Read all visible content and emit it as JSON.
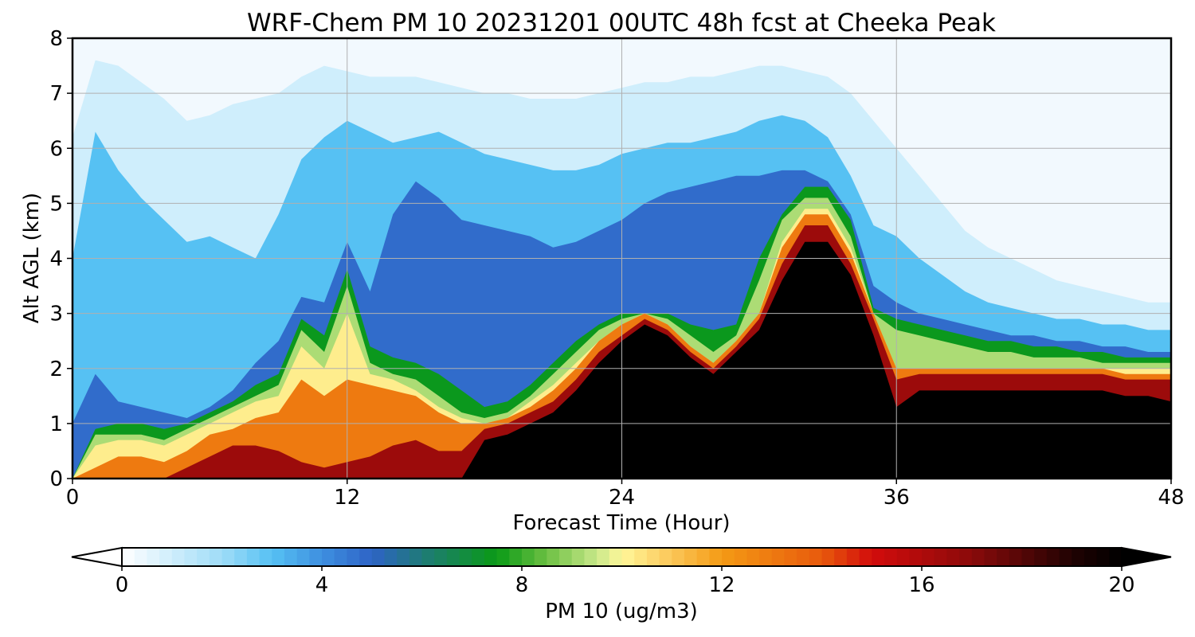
{
  "chart_data": {
    "type": "heatmap",
    "title": "WRF-Chem PM 10  20231201 00UTC 48h fcst at Cheeka Peak",
    "xlabel": "Forecast Time (Hour)",
    "ylabel": "Alt AGL (km)",
    "xlim": [
      0,
      48
    ],
    "ylim": [
      0,
      8
    ],
    "xticks": [
      0,
      12,
      24,
      36,
      48
    ],
    "yticks": [
      0,
      1,
      2,
      3,
      4,
      5,
      6,
      7,
      8
    ],
    "grid": true,
    "x_hours": [
      0,
      1,
      2,
      3,
      4,
      5,
      6,
      7,
      8,
      9,
      10,
      11,
      12,
      13,
      14,
      15,
      16,
      17,
      18,
      19,
      20,
      21,
      22,
      23,
      24,
      25,
      26,
      27,
      28,
      29,
      30,
      31,
      32,
      33,
      34,
      35,
      36,
      37,
      38,
      39,
      40,
      41,
      42,
      43,
      44,
      45,
      46,
      47,
      48
    ],
    "terrain_km": [
      0,
      0,
      0,
      0,
      0,
      0,
      0,
      0,
      0,
      0,
      0,
      0,
      0,
      0,
      0,
      0,
      0,
      0,
      0.7,
      0.8,
      1.0,
      1.2,
      1.6,
      2.1,
      2.5,
      2.8,
      2.6,
      2.2,
      1.9,
      2.3,
      2.7,
      3.6,
      4.3,
      4.3,
      3.7,
      2.6,
      1.3,
      1.6,
      1.6,
      1.6,
      1.6,
      1.6,
      1.6,
      1.6,
      1.6,
      1.6,
      1.5,
      1.5,
      1.4
    ],
    "layers": [
      {
        "name": "pm10_gt_16_ug_m3",
        "top_km": [
          0,
          0,
          0,
          0,
          0,
          0.2,
          0.4,
          0.6,
          0.6,
          0.5,
          0.3,
          0.2,
          0.3,
          0.4,
          0.6,
          0.7,
          0.5,
          0.5,
          0.9,
          1.0,
          1.2,
          1.4,
          1.8,
          2.3,
          2.6,
          2.9,
          2.7,
          2.3,
          2.0,
          2.4,
          2.9,
          3.9,
          4.6,
          4.6,
          3.9,
          2.9,
          1.8,
          1.9,
          1.9,
          1.9,
          1.9,
          1.9,
          1.9,
          1.9,
          1.9,
          1.9,
          1.8,
          1.8,
          1.8
        ]
      },
      {
        "name": "pm10_gt_12_ug_m3",
        "top_km": [
          0,
          0.2,
          0.4,
          0.4,
          0.3,
          0.5,
          0.8,
          0.9,
          1.1,
          1.2,
          1.8,
          1.5,
          1.8,
          1.7,
          1.6,
          1.5,
          1.2,
          1.0,
          1.0,
          1.1,
          1.3,
          1.6,
          2.0,
          2.5,
          2.8,
          3.0,
          2.8,
          2.4,
          2.1,
          2.5,
          3.0,
          4.2,
          4.8,
          4.8,
          4.1,
          3.0,
          2.0,
          2.0,
          2.0,
          2.0,
          2.0,
          2.0,
          2.0,
          2.0,
          2.0,
          2.0,
          1.9,
          1.9,
          1.9
        ]
      },
      {
        "name": "pm10_gt_10_ug_m3",
        "top_km": [
          0,
          0.6,
          0.7,
          0.7,
          0.6,
          0.8,
          1.0,
          1.2,
          1.4,
          1.5,
          2.4,
          2.0,
          3.0,
          1.9,
          1.8,
          1.6,
          1.3,
          1.1,
          1.0,
          1.1,
          1.4,
          1.7,
          2.1,
          2.5,
          2.8,
          3.0,
          2.8,
          2.4,
          2.1,
          2.5,
          3.0,
          4.3,
          4.9,
          4.9,
          4.2,
          3.0,
          2.0,
          2.0,
          2.0,
          2.0,
          2.0,
          2.0,
          2.0,
          2.0,
          2.0,
          2.0,
          2.0,
          2.0,
          2.0
        ]
      },
      {
        "name": "pm10_gt_8_ug_m3",
        "top_km": [
          0,
          0.8,
          0.8,
          0.8,
          0.7,
          0.9,
          1.1,
          1.3,
          1.5,
          1.7,
          2.7,
          2.3,
          3.5,
          2.1,
          1.9,
          1.8,
          1.5,
          1.2,
          1.1,
          1.2,
          1.5,
          1.9,
          2.3,
          2.7,
          2.9,
          3.0,
          2.9,
          2.6,
          2.3,
          2.6,
          3.6,
          4.7,
          5.1,
          5.1,
          4.4,
          3.0,
          2.7,
          2.6,
          2.5,
          2.4,
          2.3,
          2.3,
          2.2,
          2.2,
          2.2,
          2.1,
          2.1,
          2.1,
          2.1
        ]
      },
      {
        "name": "pm10_gt_6_ug_m3",
        "top_km": [
          0,
          0.9,
          1.0,
          1.0,
          0.9,
          1.0,
          1.2,
          1.4,
          1.7,
          1.9,
          2.9,
          2.6,
          3.8,
          2.4,
          2.2,
          2.1,
          1.9,
          1.6,
          1.3,
          1.4,
          1.7,
          2.1,
          2.5,
          2.8,
          3.0,
          3.0,
          3.0,
          2.8,
          2.7,
          2.8,
          4.0,
          4.8,
          5.3,
          5.3,
          4.7,
          3.1,
          2.9,
          2.8,
          2.7,
          2.6,
          2.5,
          2.5,
          2.4,
          2.4,
          2.3,
          2.3,
          2.2,
          2.2,
          2.2
        ]
      },
      {
        "name": "pm10_gt_4_ug_m3",
        "top_km": [
          1.0,
          1.9,
          1.4,
          1.3,
          1.2,
          1.1,
          1.3,
          1.6,
          2.1,
          2.5,
          3.3,
          3.2,
          4.3,
          3.4,
          4.8,
          5.4,
          5.1,
          4.7,
          4.6,
          4.5,
          4.4,
          4.2,
          4.3,
          4.5,
          4.7,
          5.0,
          5.2,
          5.3,
          5.4,
          5.5,
          5.5,
          5.6,
          5.6,
          5.4,
          4.8,
          3.5,
          3.2,
          3.0,
          2.9,
          2.8,
          2.7,
          2.6,
          2.6,
          2.5,
          2.5,
          2.4,
          2.4,
          2.3,
          2.3
        ]
      },
      {
        "name": "pm10_gt_2_ug_m3",
        "top_km": [
          4.0,
          6.3,
          5.6,
          5.1,
          4.7,
          4.3,
          4.4,
          4.2,
          4.0,
          4.8,
          5.8,
          6.2,
          6.5,
          6.3,
          6.1,
          6.2,
          6.3,
          6.1,
          5.9,
          5.8,
          5.7,
          5.6,
          5.6,
          5.7,
          5.9,
          6.0,
          6.1,
          6.1,
          6.2,
          6.3,
          6.5,
          6.6,
          6.5,
          6.2,
          5.5,
          4.6,
          4.4,
          4.0,
          3.7,
          3.4,
          3.2,
          3.1,
          3.0,
          2.9,
          2.9,
          2.8,
          2.8,
          2.7,
          2.7
        ]
      },
      {
        "name": "pm10_gt_0.5_ug_m3",
        "top_km": [
          6.2,
          7.6,
          7.5,
          7.2,
          6.9,
          6.5,
          6.6,
          6.8,
          6.9,
          7.0,
          7.3,
          7.5,
          7.4,
          7.3,
          7.3,
          7.3,
          7.2,
          7.1,
          7.0,
          7.0,
          6.9,
          6.9,
          6.9,
          7.0,
          7.1,
          7.2,
          7.2,
          7.3,
          7.3,
          7.4,
          7.5,
          7.5,
          7.4,
          7.3,
          7.0,
          6.5,
          6.0,
          5.5,
          5.0,
          4.5,
          4.2,
          4.0,
          3.8,
          3.6,
          3.5,
          3.4,
          3.3,
          3.2,
          3.2
        ]
      }
    ],
    "colorbar": {
      "label": "PM 10  (ug/m3)",
      "min": 0,
      "max": 20,
      "ticks": [
        0,
        4,
        8,
        12,
        16,
        20
      ],
      "extend": "both",
      "color_stops": [
        {
          "value": 0,
          "color": "#ffffff"
        },
        {
          "value": 2,
          "color": "#9fdcf8"
        },
        {
          "value": 3,
          "color": "#56c1f3"
        },
        {
          "value": 4,
          "color": "#3e8fe0"
        },
        {
          "value": 5,
          "color": "#2e63c6"
        },
        {
          "value": 6,
          "color": "#1f7a78"
        },
        {
          "value": 7.5,
          "color": "#0a9a16"
        },
        {
          "value": 8.5,
          "color": "#6cc043"
        },
        {
          "value": 9.5,
          "color": "#c8e88a"
        },
        {
          "value": 10,
          "color": "#fff79a"
        },
        {
          "value": 11,
          "color": "#fbc658"
        },
        {
          "value": 12,
          "color": "#f49a14"
        },
        {
          "value": 14,
          "color": "#e85a0c"
        },
        {
          "value": 15,
          "color": "#d20c0c"
        },
        {
          "value": 17,
          "color": "#8a0a0a"
        },
        {
          "value": 19,
          "color": "#200202"
        },
        {
          "value": 20,
          "color": "#000000"
        }
      ]
    }
  }
}
